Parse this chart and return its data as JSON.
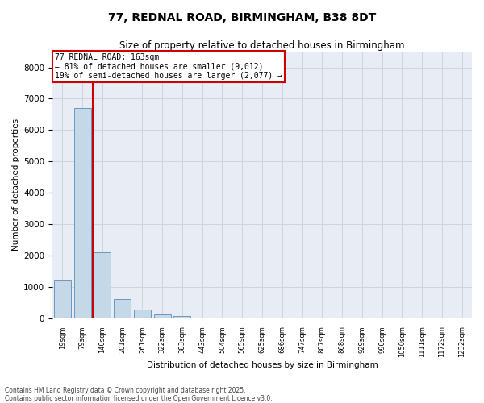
{
  "title_line1": "77, REDNAL ROAD, BIRMINGHAM, B38 8DT",
  "title_line2": "Size of property relative to detached houses in Birmingham",
  "xlabel": "Distribution of detached houses by size in Birmingham",
  "ylabel": "Number of detached properties",
  "categories": [
    "19sqm",
    "79sqm",
    "140sqm",
    "201sqm",
    "261sqm",
    "322sqm",
    "383sqm",
    "443sqm",
    "504sqm",
    "565sqm",
    "625sqm",
    "686sqm",
    "747sqm",
    "807sqm",
    "868sqm",
    "929sqm",
    "990sqm",
    "1050sqm",
    "1111sqm",
    "1172sqm",
    "1232sqm"
  ],
  "values": [
    1200,
    6700,
    2100,
    620,
    270,
    120,
    55,
    25,
    15,
    5,
    0,
    0,
    0,
    0,
    0,
    0,
    0,
    0,
    0,
    0,
    0
  ],
  "bar_color": "#c5d8e8",
  "bar_edge_color": "#5b8db8",
  "vline_color": "#cc0000",
  "annotation_text": "77 REDNAL ROAD: 163sqm\n← 81% of detached houses are smaller (9,012)\n19% of semi-detached houses are larger (2,077) →",
  "annotation_box_color": "#cc0000",
  "ylim": [
    0,
    8500
  ],
  "yticks": [
    0,
    1000,
    2000,
    3000,
    4000,
    5000,
    6000,
    7000,
    8000
  ],
  "grid_color": "#cdd5e0",
  "background_color": "#e8edf5",
  "footer_line1": "Contains HM Land Registry data © Crown copyright and database right 2025.",
  "footer_line2": "Contains public sector information licensed under the Open Government Licence v3.0."
}
